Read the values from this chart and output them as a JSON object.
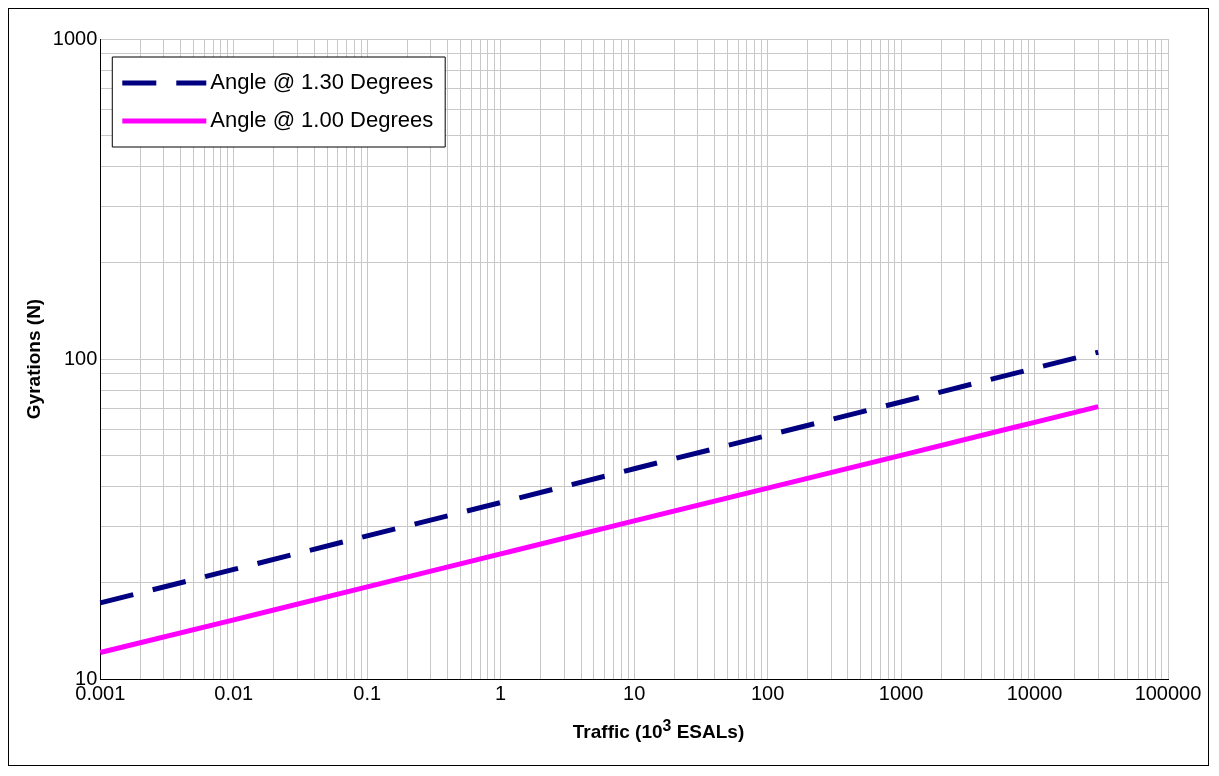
{
  "chart_data": {
    "type": "line",
    "xlabel": "Traffic (10$^{3}$ ESALs)",
    "ylabel": "Gyrations (N)",
    "log": "xy",
    "grid": true,
    "legend": "top left",
    "xlim": [
      0.001,
      100000
    ],
    "ylim": [
      10,
      1000
    ],
    "xticks": [
      0.001,
      {
        "value": 0.002,
        "label": null
      },
      {
        "value": 0.003,
        "label": null
      },
      {
        "value": 0.004,
        "label": null
      },
      {
        "value": 0.005,
        "label": null
      },
      {
        "value": 0.006,
        "label": null
      },
      {
        "value": 0.007,
        "label": null
      },
      {
        "value": 0.008,
        "label": null
      },
      {
        "value": 0.009,
        "label": null
      },
      0.01,
      {
        "value": 0.02,
        "label": null
      },
      {
        "value": 0.03,
        "label": null
      },
      {
        "value": 0.04,
        "label": null
      },
      {
        "value": 0.05,
        "label": null
      },
      {
        "value": 0.06,
        "label": null
      },
      {
        "value": 0.07,
        "label": null
      },
      {
        "value": 0.08,
        "label": null
      },
      {
        "value": 0.09,
        "label": null
      },
      0.1,
      {
        "value": 0.2,
        "label": null
      },
      {
        "value": 0.3,
        "label": null
      },
      {
        "value": 0.4,
        "label": null
      },
      {
        "value": 0.5,
        "label": null
      },
      {
        "value": 0.6,
        "label": null
      },
      {
        "value": 0.7,
        "label": null
      },
      {
        "value": 0.8,
        "label": null
      },
      {
        "value": 0.9,
        "label": null
      },
      1,
      {
        "value": 2,
        "label": null
      },
      {
        "value": 3,
        "label": null
      },
      {
        "value": 4,
        "label": null
      },
      {
        "value": 5,
        "label": null
      },
      {
        "value": 6,
        "label": null
      },
      {
        "value": 7,
        "label": null
      },
      {
        "value": 8,
        "label": null
      },
      {
        "value": 9,
        "label": null
      },
      10,
      {
        "value": 20,
        "label": null
      },
      {
        "value": 30,
        "label": null
      },
      {
        "value": 40,
        "label": null
      },
      {
        "value": 50,
        "label": null
      },
      {
        "value": 60,
        "label": null
      },
      {
        "value": 70,
        "label": null
      },
      {
        "value": 80,
        "label": null
      },
      {
        "value": 90,
        "label": null
      },
      100,
      {
        "value": 200,
        "label": null
      },
      {
        "value": 300,
        "label": null
      },
      {
        "value": 400,
        "label": null
      },
      {
        "value": 500,
        "label": null
      },
      {
        "value": 600,
        "label": null
      },
      {
        "value": 700,
        "label": null
      },
      {
        "value": 800,
        "label": null
      },
      {
        "value": 900,
        "label": null
      },
      1000,
      {
        "value": 2000,
        "label": null
      },
      {
        "value": 3000,
        "label": null
      },
      {
        "value": 4000,
        "label": null
      },
      {
        "value": 5000,
        "label": null
      },
      {
        "value": 6000,
        "label": null
      },
      {
        "value": 7000,
        "label": null
      },
      {
        "value": 8000,
        "label": null
      },
      {
        "value": 9000,
        "label": null
      },
      10000,
      {
        "value": 20000,
        "label": null
      },
      {
        "value": 30000,
        "label": null
      },
      {
        "value": 40000,
        "label": null
      },
      {
        "value": 50000,
        "label": null
      },
      {
        "value": 60000,
        "label": null
      },
      {
        "value": 70000,
        "label": null
      },
      {
        "value": 80000,
        "label": null
      },
      {
        "value": 90000,
        "label": null
      },
      100000
    ],
    "yticks": [
      10,
      {
        "value": 20,
        "label": null
      },
      {
        "value": 30,
        "label": null
      },
      {
        "value": 40,
        "label": null
      },
      {
        "value": 50,
        "label": null
      },
      {
        "value": 60,
        "label": null
      },
      {
        "value": 70,
        "label": null
      },
      {
        "value": 80,
        "label": null
      },
      {
        "value": 90,
        "label": null
      },
      100,
      {
        "value": 200,
        "label": null
      },
      {
        "value": 300,
        "label": null
      },
      {
        "value": 400,
        "label": null
      },
      {
        "value": 500,
        "label": null
      },
      {
        "value": 600,
        "label": null
      },
      {
        "value": 700,
        "label": null
      },
      {
        "value": 800,
        "label": null
      },
      {
        "value": 900,
        "label": null
      },
      1000
    ],
    "series": [
      {
        "name": "Angle @ 1.30 Degrees",
        "color": "#000080",
        "line_style": "dashed",
        "x": [
          0.001,
          0.01,
          0.1,
          1,
          10,
          100,
          1000,
          10000,
          30000
        ],
        "values": [
          17.3,
          22,
          28,
          35.6,
          45.4,
          57.7,
          73.4,
          93.5,
          105
        ]
      },
      {
        "name": "Angle @ 1.00 Degrees",
        "color": "#ff00ff",
        "line_style": "solid",
        "x": [
          0.001,
          0.01,
          0.1,
          1,
          10,
          100,
          1000,
          10000,
          30000
        ],
        "values": [
          12.1,
          15.3,
          19.4,
          24.6,
          31.2,
          39.5,
          50,
          63.4,
          71
        ]
      }
    ]
  }
}
